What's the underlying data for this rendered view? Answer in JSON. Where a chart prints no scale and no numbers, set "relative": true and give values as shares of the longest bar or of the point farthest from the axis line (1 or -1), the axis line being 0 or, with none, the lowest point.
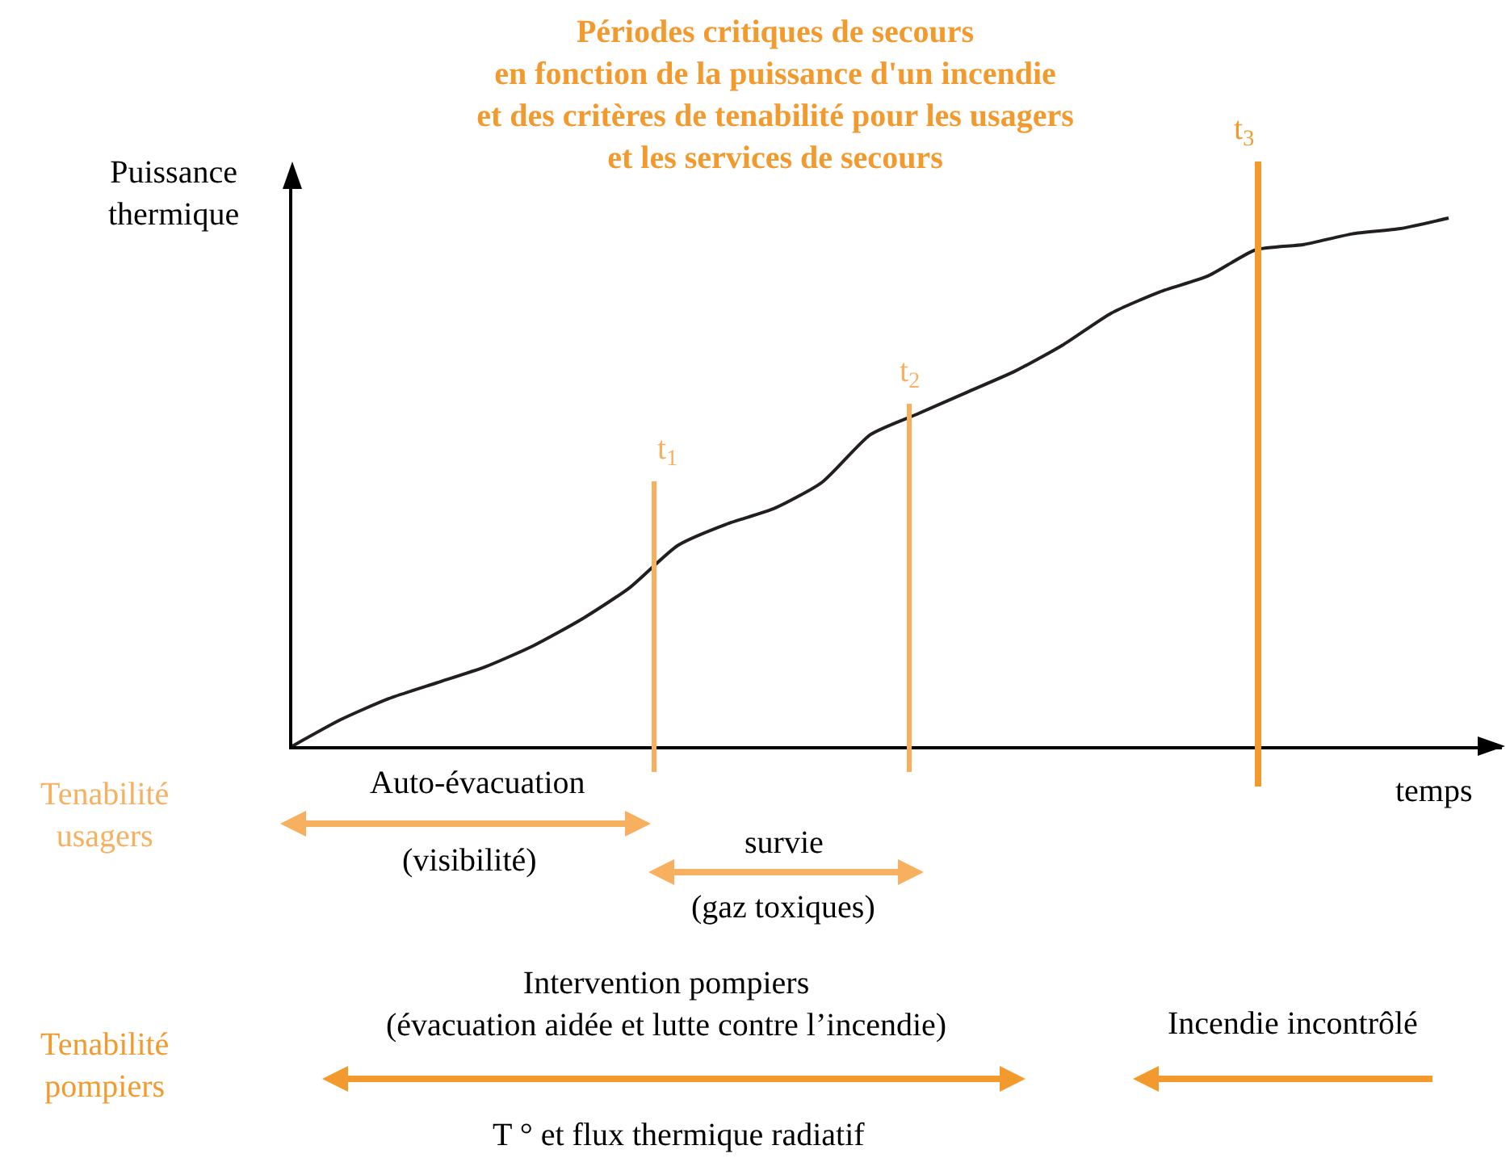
{
  "chart_data": {
    "type": "line",
    "relative": true,
    "title": "Périodes critiques de secours\nen fonction de la puissance d'un incendie\net des critères de tenabilité pour les usagers\net les services de secours",
    "ylabel": "Puissance\nthermique",
    "xlabel": "temps",
    "categories": [
      null,
      null,
      null,
      null,
      null,
      null,
      null,
      null,
      null,
      null,
      null,
      null,
      null,
      null,
      null,
      null,
      null,
      null,
      null,
      null,
      null,
      null,
      null,
      null,
      null
    ],
    "series": [
      {
        "color": "#231f20",
        "values": [
          0,
          0.05,
          0.09,
          0.12,
          0.15,
          0.19,
          0.24,
          0.3,
          0.38,
          0.42,
          0.45,
          0.5,
          0.59,
          0.63,
          0.67,
          0.71,
          0.76,
          0.82,
          0.86,
          0.89,
          0.94,
          0.95,
          0.97,
          0.98,
          1
        ]
      }
    ],
    "annotations": [
      "t$_{1}$",
      "t$_{2}$",
      "t$_{3}$",
      "Tenabilité\nusagers",
      "Auto-évacuation",
      "(visibilité)",
      "survie",
      "(gaz toxiques)",
      "Tenabilité\npompiers",
      "Intervention pompiers\n(évacuation aidée et lutte contre l’incendie)",
      "Incendie incontrôlé",
      "T ° et flux thermique radiatif"
    ],
    "legend": false,
    "marker": "none",
    "line_style": "solid"
  }
}
